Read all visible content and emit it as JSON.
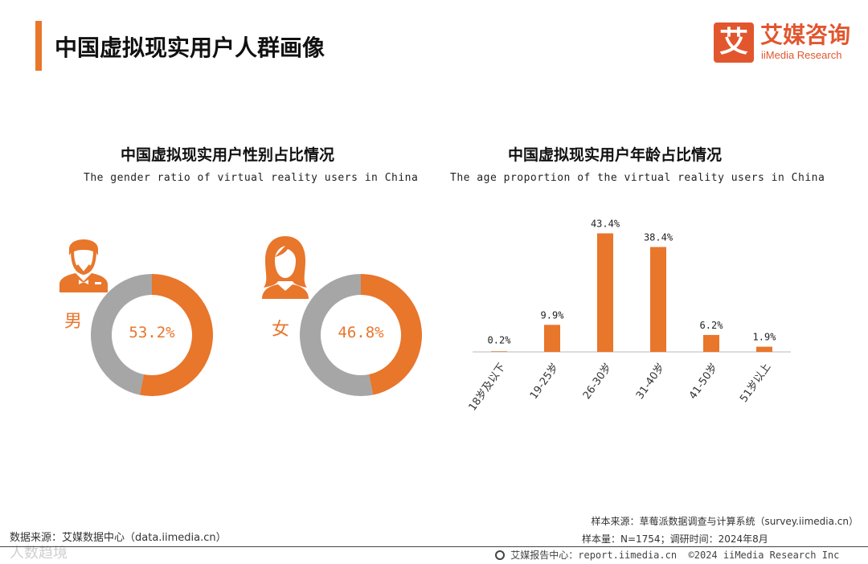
{
  "header": {
    "title": "中国虚拟现实用户人群画像",
    "logo_mark": "艾",
    "logo_cn": "艾媒咨询",
    "logo_en": "iiMedia Research"
  },
  "colors": {
    "accent": "#e8762b",
    "grey": "#a6a6a6",
    "brand": "#e2562e"
  },
  "chart_data": [
    {
      "type": "pie",
      "donut": true,
      "title": "中国虚拟现实用户性别占比情况",
      "subtitle": "The gender ratio of virtual reality users in China",
      "charts": [
        {
          "label": "男",
          "value": 53.2,
          "display": "53.2%",
          "icon": "male-user-icon"
        },
        {
          "label": "女",
          "value": 46.8,
          "display": "46.8%",
          "icon": "female-user-icon"
        }
      ]
    },
    {
      "type": "bar",
      "title": "中国虚拟现实用户年龄占比情况",
      "subtitle": "The age proportion of the virtual reality users in China",
      "categories": [
        "18岁及以下",
        "19-25岁",
        "26-30岁",
        "31-40岁",
        "41-50岁",
        "51岁以上"
      ],
      "values": [
        0.2,
        9.9,
        43.4,
        38.4,
        6.2,
        1.9
      ],
      "labels": [
        "0.2%",
        "9.9%",
        "43.4%",
        "38.4%",
        "6.2%",
        "1.9%"
      ],
      "ylim": [
        0,
        45
      ]
    }
  ],
  "footer": {
    "data_source": "数据来源：艾媒数据中心（data.iimedia.cn）",
    "sample_source": "样本来源：草莓派数据调查与计算系统（survey.iimedia.cn）",
    "sample_size": "样本量：N=1754；调研时间：2024年8月",
    "center_cn": "艾媒报告中心：",
    "center_url": "report.iimedia.cn",
    "copyright": "©2024  iiMedia Research  Inc",
    "watermark": "人数趋境"
  }
}
